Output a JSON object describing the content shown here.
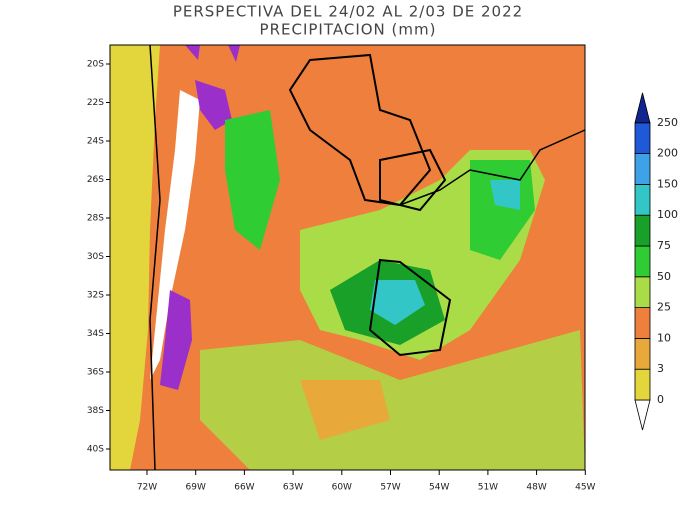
{
  "title": [
    "PERSPECTIVA DEL 24/02 AL 2/03 DE 2022",
    "PRECIPITACION (mm)"
  ],
  "lat_labels": [
    "20S",
    "22S",
    "24S",
    "26S",
    "28S",
    "30S",
    "32S",
    "34S",
    "36S",
    "38S",
    "40S"
  ],
  "lon_labels": [
    "72W",
    "69W",
    "66W",
    "63W",
    "60W",
    "57W",
    "54W",
    "51W",
    "48W",
    "45W"
  ],
  "legend": {
    "levels": [
      0,
      3,
      10,
      25,
      50,
      75,
      100,
      150,
      200,
      250
    ],
    "colors": [
      "#e3d63c",
      "#e9a83a",
      "#ef7f3c",
      "#a9dc46",
      "#30cc34",
      "#18a028",
      "#33c6c6",
      "#3da2e6",
      "#1e5ad8",
      "#12248f"
    ],
    "below_color": "#ffffff"
  }
}
